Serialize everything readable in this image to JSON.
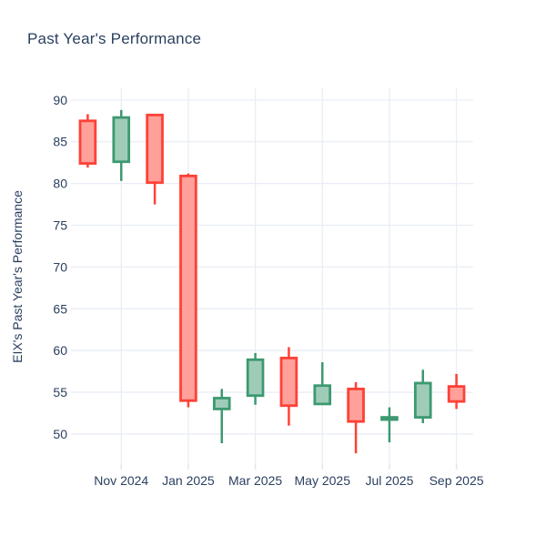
{
  "chart_data": {
    "type": "candlestick",
    "title": "Past Year's Performance",
    "xlabel": "",
    "ylabel": "EIX's Past Year's Performance",
    "categories": [
      "Oct 2024",
      "Nov 2024",
      "Dec 2024",
      "Jan 2025",
      "Feb 2025",
      "Mar 2025",
      "Apr 2025",
      "May 2025",
      "Jun 2025",
      "Jul 2025",
      "Aug 2025",
      "Sep 2025"
    ],
    "x_tick_indices": [
      1,
      3,
      5,
      7,
      9,
      11
    ],
    "x_tick_labels": [
      "Nov 2024",
      "Jan 2025",
      "Mar 2025",
      "May 2025",
      "Jul 2025",
      "Sep 2025"
    ],
    "y_ticks": [
      50,
      55,
      60,
      65,
      70,
      75,
      80,
      85,
      90
    ],
    "ylim": [
      46.4,
      91.4
    ],
    "grid": true,
    "legend": "none",
    "series": [
      {
        "name": "EIX",
        "ohlc": [
          {
            "month": "Oct 2024",
            "open": 87.5,
            "high": 88.3,
            "low": 81.9,
            "close": 82.4
          },
          {
            "month": "Nov 2024",
            "open": 82.6,
            "high": 88.8,
            "low": 80.3,
            "close": 87.9
          },
          {
            "month": "Dec 2024",
            "open": 88.2,
            "high": 88.2,
            "low": 77.5,
            "close": 80.1
          },
          {
            "month": "Jan 2025",
            "open": 80.9,
            "high": 81.2,
            "low": 53.2,
            "close": 54.0
          },
          {
            "month": "Feb 2025",
            "open": 53.0,
            "high": 55.4,
            "low": 48.9,
            "close": 54.3
          },
          {
            "month": "Mar 2025",
            "open": 54.6,
            "high": 59.7,
            "low": 53.5,
            "close": 58.9
          },
          {
            "month": "Apr 2025",
            "open": 59.1,
            "high": 60.4,
            "low": 51.0,
            "close": 53.4
          },
          {
            "month": "May 2025",
            "open": 53.6,
            "high": 58.6,
            "low": 53.6,
            "close": 55.8
          },
          {
            "month": "Jun 2025",
            "open": 55.4,
            "high": 56.2,
            "low": 47.7,
            "close": 51.5
          },
          {
            "month": "Jul 2025",
            "open": 51.9,
            "high": 53.2,
            "low": 49.0,
            "close": 52.0
          },
          {
            "month": "Aug 2025",
            "open": 52.0,
            "high": 57.7,
            "low": 51.3,
            "close": 56.1
          },
          {
            "month": "Sep 2025",
            "open": 55.7,
            "high": 57.2,
            "low": 53.0,
            "close": 53.9
          }
        ]
      }
    ],
    "colors": {
      "increasing_line": "#3d9970",
      "increasing_fill": "#9eccb8",
      "decreasing_line": "#ff4136",
      "decreasing_fill": "#ffa09a",
      "text": "#2a3f5f",
      "grid": "#e9edf5",
      "tick": "#e1e6ee",
      "background": "#ffffff"
    }
  }
}
